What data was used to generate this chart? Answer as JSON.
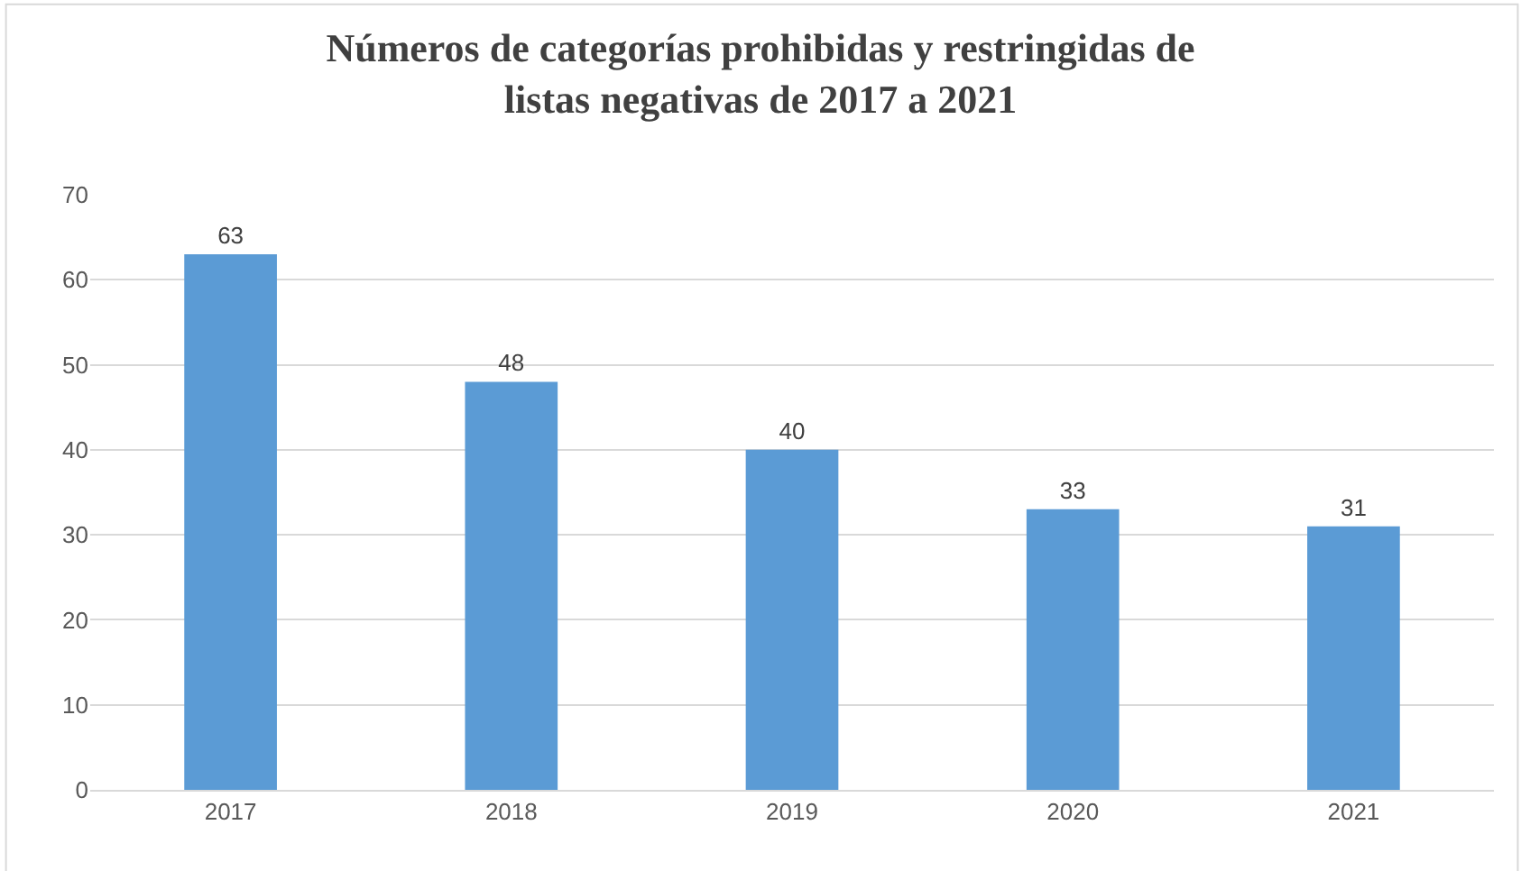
{
  "chart_data": {
    "type": "bar",
    "title": "Números de categorías prohibidas y restringidas de listas negativas de 2017 a 2021",
    "categories": [
      "2017",
      "2018",
      "2019",
      "2020",
      "2021"
    ],
    "values": [
      63,
      48,
      40,
      33,
      31
    ],
    "color": "#5b9bd5",
    "ylim": [
      0,
      70
    ],
    "yticks": [
      0,
      10,
      20,
      30,
      40,
      50,
      60,
      70
    ],
    "grid": "y",
    "data_labels": true
  }
}
